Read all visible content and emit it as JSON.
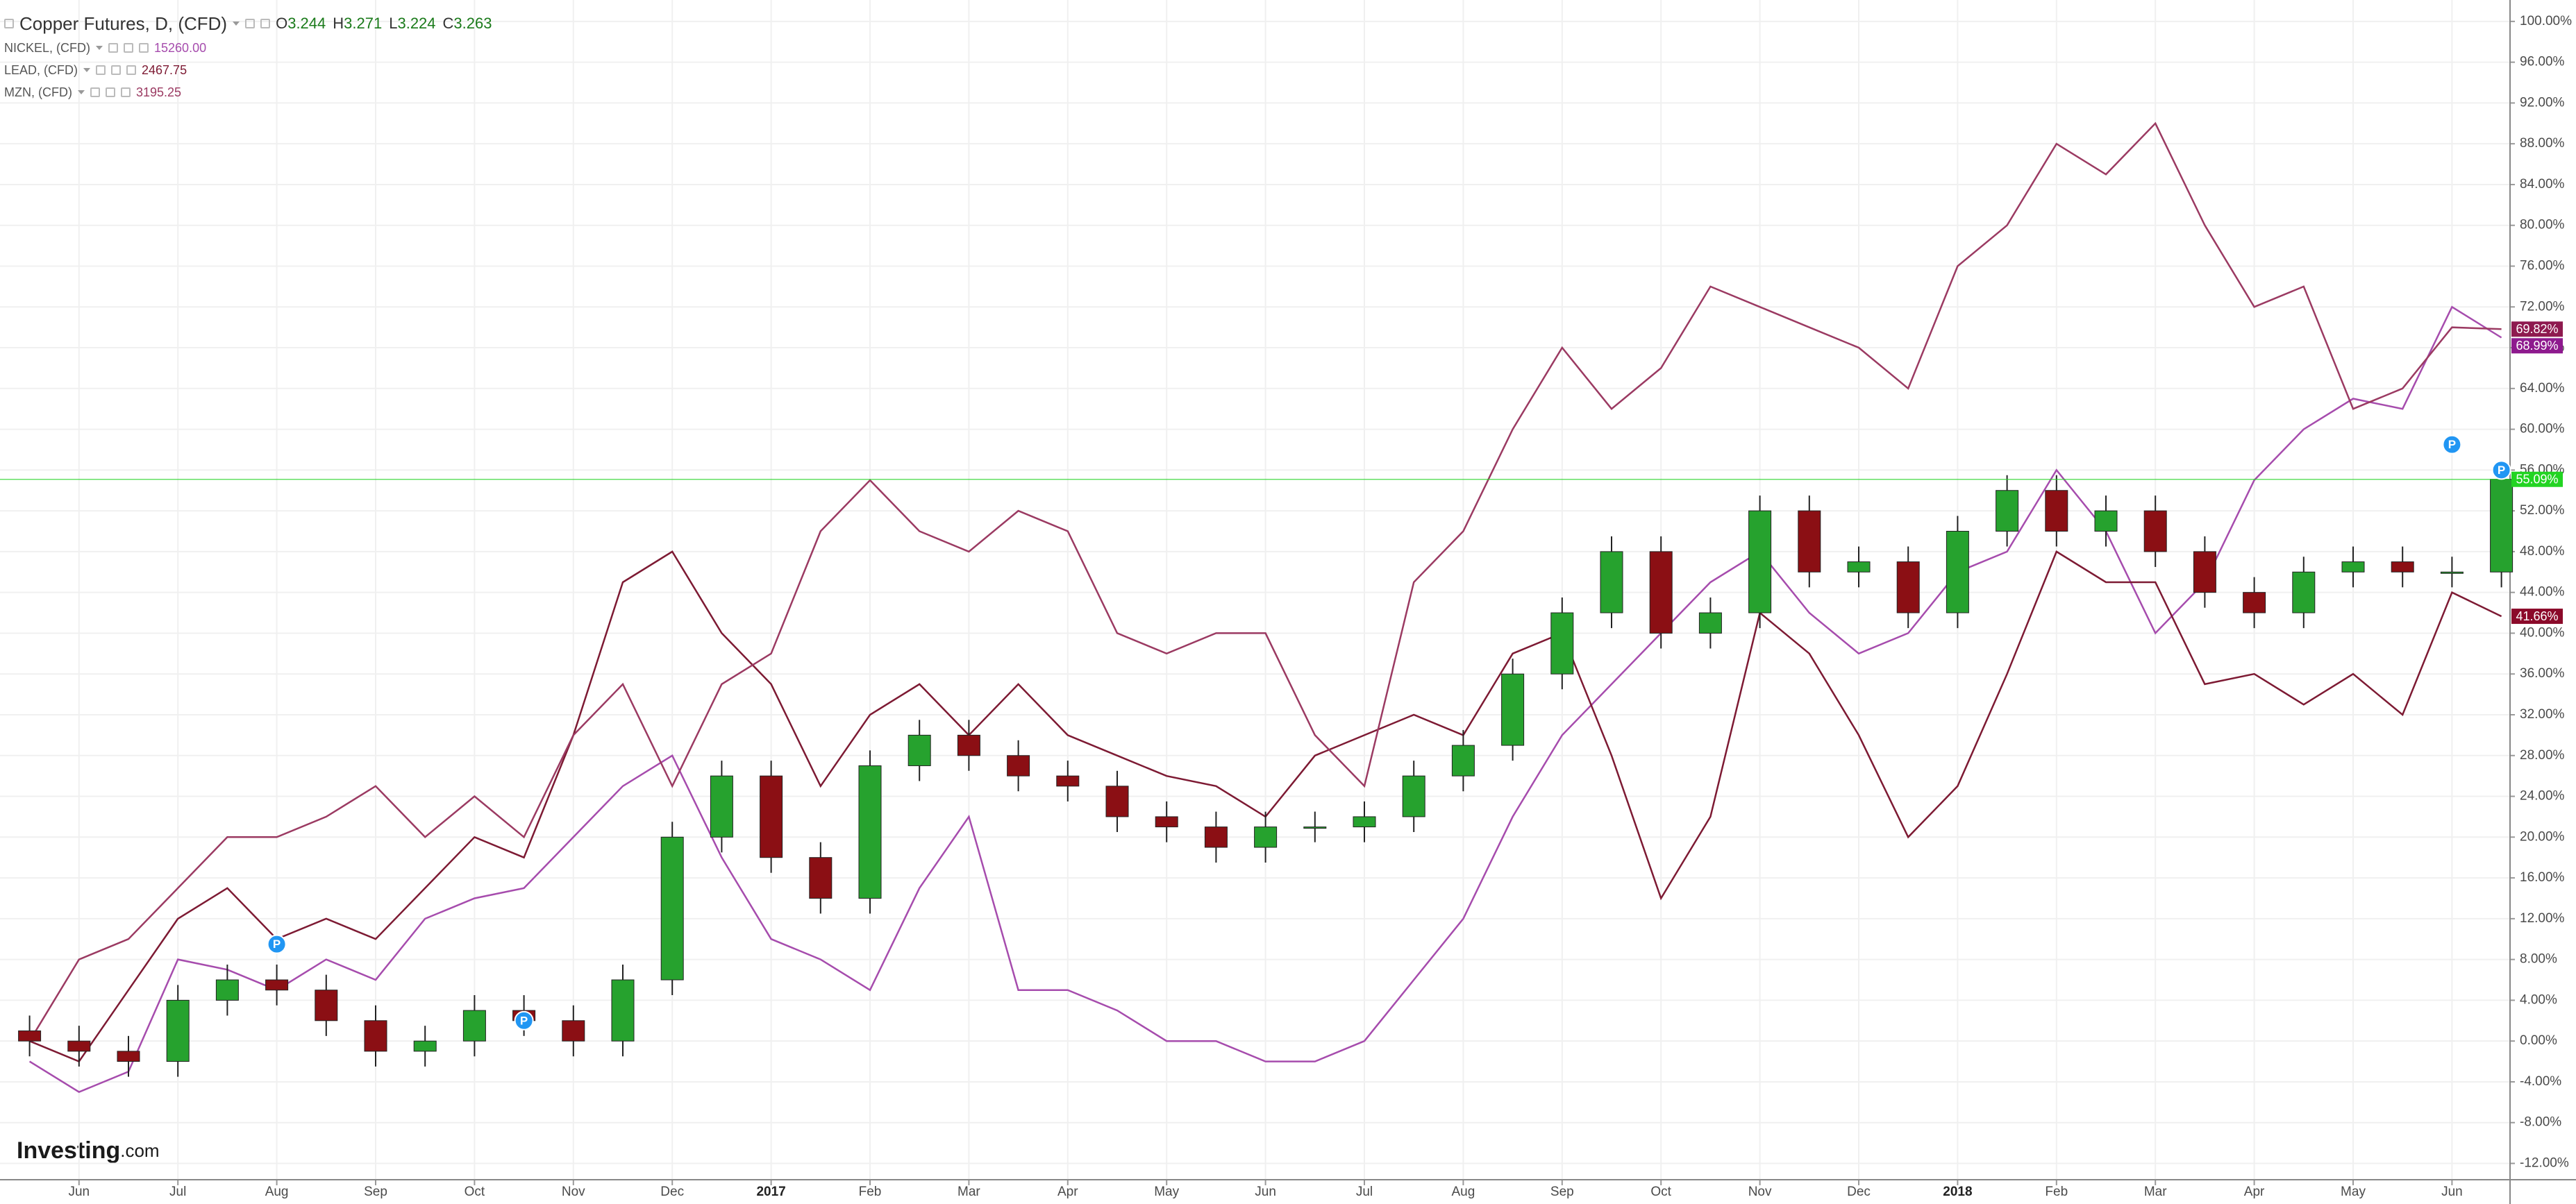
{
  "chart_data": {
    "type": "candlestick",
    "title": "Copper Futures, D, (CFD)",
    "readout": [
      {
        "label": "O",
        "text": "3.244"
      },
      {
        "label": "H",
        "text": "3.271"
      },
      {
        "label": "L",
        "text": "3.224"
      },
      {
        "label": "C",
        "text": "3.263"
      }
    ],
    "categories": [
      null,
      "Jun",
      null,
      "Jul",
      null,
      "Aug",
      null,
      "Sep",
      null,
      "Oct",
      null,
      "Nov",
      null,
      "Dec",
      null,
      "2017",
      null,
      "Feb",
      null,
      "Mar",
      null,
      "Apr",
      null,
      "May",
      null,
      "Jun",
      null,
      "Jul",
      null,
      "Aug",
      null,
      "Sep",
      null,
      "Oct",
      null,
      "Nov",
      null,
      "Dec",
      null,
      "2018",
      null,
      "Feb",
      null,
      "Mar",
      null,
      "Apr",
      null,
      "May",
      null,
      "Jun",
      null
    ],
    "candles": {
      "color_up": "#26a22e",
      "color_down": "#8b0f14",
      "last_color": "#22d422",
      "last_label": "55.09%",
      "open": [
        1,
        0,
        -1,
        -2,
        4,
        6,
        5,
        2,
        -1,
        0,
        3,
        2,
        0,
        6,
        20,
        26,
        18,
        14,
        27,
        30,
        28,
        26,
        25,
        22,
        21,
        19,
        21,
        21,
        22,
        26,
        29,
        36,
        42,
        48,
        40,
        42,
        52,
        46,
        47,
        42,
        50,
        54,
        50,
        52,
        48,
        44,
        42,
        46,
        47,
        46,
        46
      ],
      "high": [
        2.5,
        1.5,
        0.5,
        5.5,
        7.5,
        7.5,
        6.5,
        3.5,
        1.5,
        4.5,
        4.5,
        3.5,
        7.5,
        21.5,
        27.5,
        27.5,
        19.5,
        28.5,
        31.5,
        31.5,
        29.5,
        27.5,
        26.5,
        23.5,
        22.5,
        22.5,
        22.5,
        23.5,
        27.5,
        30.5,
        37.5,
        43.5,
        49.5,
        49.5,
        43.5,
        53.5,
        53.5,
        48.5,
        48.5,
        51.5,
        55.5,
        55.5,
        53.5,
        53.5,
        49.5,
        45.5,
        47.5,
        48.5,
        48.5,
        47.5,
        56.5
      ],
      "low": [
        -1.5,
        -2.5,
        -3.5,
        -3.5,
        2.5,
        3.5,
        0.5,
        -2.5,
        -2.5,
        -1.5,
        0.5,
        -1.5,
        -1.5,
        4.5,
        18.5,
        16.5,
        12.5,
        12.5,
        25.5,
        26.5,
        24.5,
        23.5,
        20.5,
        19.5,
        17.5,
        17.5,
        19.5,
        19.5,
        20.5,
        24.5,
        27.5,
        34.5,
        40.5,
        38.5,
        38.5,
        40.5,
        44.5,
        44.5,
        40.5,
        40.5,
        48.5,
        48.5,
        48.5,
        46.5,
        42.5,
        40.5,
        40.5,
        44.5,
        44.5,
        44.5,
        44.5
      ],
      "close": [
        0,
        -1,
        -2,
        4,
        6,
        5,
        2,
        -1,
        0,
        3,
        2,
        0,
        6,
        20,
        26,
        18,
        14,
        27,
        30,
        28,
        26,
        25,
        22,
        21,
        19,
        21,
        21,
        22,
        26,
        29,
        36,
        42,
        48,
        40,
        42,
        52,
        46,
        47,
        42,
        50,
        54,
        50,
        52,
        48,
        44,
        42,
        46,
        47,
        46,
        46,
        55.09
      ]
    },
    "series": [
      {
        "name": "NICKEL, (CFD)",
        "legend_value": "15260.00",
        "color": "#a64cad",
        "tag_color": "#8e1a8e",
        "last_label": "68.99%",
        "values": [
          -2,
          -5,
          -3,
          8,
          7,
          5,
          8,
          6,
          12,
          14,
          15,
          20,
          25,
          28,
          18,
          10,
          8,
          5,
          15,
          22,
          5,
          5,
          3,
          0,
          0,
          -2,
          -2,
          0,
          6,
          12,
          22,
          30,
          35,
          40,
          45,
          48,
          42,
          38,
          40,
          46,
          48,
          56,
          50,
          40,
          45,
          55,
          60,
          63,
          62,
          72,
          68.99
        ]
      },
      {
        "name": "LEAD, (CFD)",
        "legend_value": "2467.75",
        "color": "#7d1a33",
        "tag_color": "#8b0a2a",
        "last_label": "41.66%",
        "values": [
          0,
          -2,
          5,
          12,
          15,
          10,
          12,
          10,
          15,
          20,
          18,
          30,
          45,
          48,
          40,
          35,
          25,
          32,
          35,
          30,
          35,
          30,
          28,
          26,
          25,
          22,
          28,
          30,
          32,
          30,
          38,
          40,
          28,
          14,
          22,
          42,
          38,
          30,
          20,
          25,
          36,
          48,
          45,
          45,
          35,
          36,
          33,
          36,
          32,
          44,
          41.66
        ]
      },
      {
        "name": "MZN, (CFD)",
        "legend_value": "3195.25",
        "color": "#9b3a62",
        "tag_color": "#8e1a4f",
        "last_label": "69.82%",
        "values": [
          0,
          8,
          10,
          15,
          20,
          20,
          22,
          25,
          20,
          24,
          20,
          30,
          35,
          25,
          35,
          38,
          50,
          55,
          50,
          48,
          52,
          50,
          40,
          38,
          40,
          40,
          30,
          25,
          45,
          50,
          60,
          68,
          62,
          66,
          74,
          72,
          70,
          68,
          64,
          76,
          80,
          88,
          85,
          90,
          80,
          72,
          74,
          62,
          64,
          70,
          69.82
        ]
      }
    ],
    "annotations": [
      {
        "index": 5,
        "value": 9.5,
        "label": "P"
      },
      {
        "index": 10,
        "value": 2,
        "label": "P"
      },
      {
        "index": 49,
        "value": 58.5,
        "label": "P"
      },
      {
        "index": 50,
        "value": 56,
        "label": "P"
      }
    ],
    "ylim": [
      -13.6,
      102.1
    ],
    "yticks": [
      {
        "value": -12,
        "label": "-12.00%"
      },
      {
        "value": -8,
        "label": "-8.00%"
      },
      {
        "value": -4,
        "label": "-4.00%"
      },
      {
        "value": 0,
        "label": "0.00%"
      },
      {
        "value": 4,
        "label": "4.00%"
      },
      {
        "value": 8,
        "label": "8.00%"
      },
      {
        "value": 12,
        "label": "12.00%"
      },
      {
        "value": 16,
        "label": "16.00%"
      },
      {
        "value": 20,
        "label": "20.00%"
      },
      {
        "value": 24,
        "label": "24.00%"
      },
      {
        "value": 28,
        "label": "28.00%"
      },
      {
        "value": 32,
        "label": "32.00%"
      },
      {
        "value": 36,
        "label": "36.00%"
      },
      {
        "value": 40,
        "label": "40.00%"
      },
      {
        "value": 44,
        "label": "44.00%"
      },
      {
        "value": 48,
        "label": "48.00%"
      },
      {
        "value": 52,
        "label": "52.00%"
      },
      {
        "value": 56,
        "label": "56.00%"
      },
      {
        "value": 60,
        "label": "60.00%"
      },
      {
        "value": 64,
        "label": "64.00%"
      },
      {
        "value": 68,
        "label": "68.00%"
      },
      {
        "value": 72,
        "label": "72.00%"
      },
      {
        "value": 76,
        "label": "76.00%"
      },
      {
        "value": 80,
        "label": "80.00%"
      },
      {
        "value": 84,
        "label": "84.00%"
      },
      {
        "value": 88,
        "label": "88.00%"
      },
      {
        "value": 92,
        "label": "92.00%"
      },
      {
        "value": 96,
        "label": "96.00%"
      },
      {
        "value": 100,
        "label": "100.00%"
      }
    ],
    "grid": true,
    "watermark": {
      "name": "Investing",
      "suffix": ".com"
    }
  }
}
